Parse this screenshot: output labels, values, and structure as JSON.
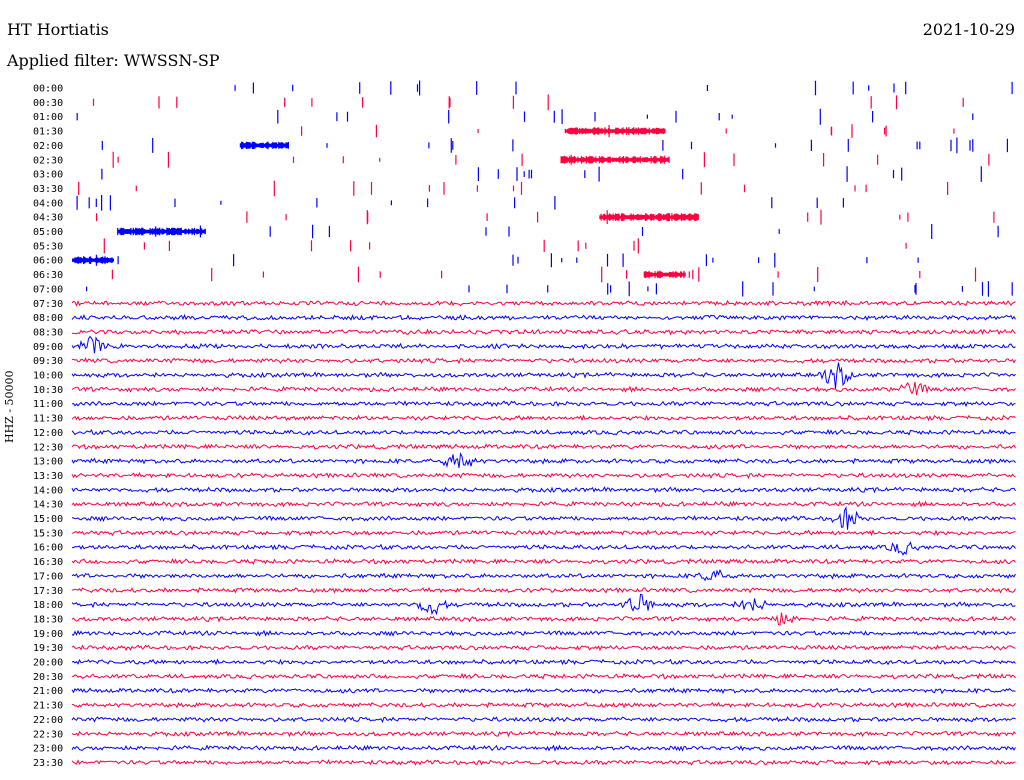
{
  "header": {
    "station": "HT Hortiatis",
    "date": "2021-10-29",
    "filter_label": "Applied filter: WWSSN-SP"
  },
  "chart_data": {
    "type": "line",
    "title": "HT Hortiatis",
    "ylabel": "HHZ - 50000",
    "colors": {
      "trace_a": "#0000ff",
      "trace_b": "#ff0040"
    },
    "row_labels": [
      "00:00",
      "00:30",
      "01:00",
      "01:30",
      "02:00",
      "02:30",
      "03:00",
      "03:30",
      "04:00",
      "04:30",
      "05:00",
      "05:30",
      "06:00",
      "06:30",
      "07:00",
      "07:30",
      "08:00",
      "08:30",
      "09:00",
      "09:30",
      "10:00",
      "10:30",
      "11:00",
      "11:30",
      "12:00",
      "12:30",
      "13:00",
      "13:30",
      "14:00",
      "14:30",
      "15:00",
      "15:30",
      "16:00",
      "16:30",
      "17:00",
      "17:30",
      "18:00",
      "18:30",
      "19:00",
      "19:30",
      "20:00",
      "20:30",
      "21:00",
      "21:30",
      "22:00",
      "22:30",
      "23:00",
      "23:30"
    ],
    "row_colors": [
      "a",
      "b",
      "a",
      "b",
      "a",
      "b",
      "a",
      "b",
      "a",
      "b",
      "a",
      "b",
      "a",
      "b",
      "a",
      "b",
      "a",
      "b",
      "a",
      "b",
      "a",
      "b",
      "a",
      "b",
      "a",
      "b",
      "a",
      "b",
      "a",
      "b",
      "a",
      "b",
      "a",
      "b",
      "a",
      "b",
      "a",
      "b",
      "a",
      "b",
      "a",
      "b",
      "a",
      "b",
      "a",
      "b",
      "a",
      "b"
    ],
    "sparse_rows_until": "07:30",
    "events": [
      {
        "row": "09:00",
        "pos": 0.02,
        "amp": 9
      },
      {
        "row": "10:00",
        "pos": 0.81,
        "amp": 12
      },
      {
        "row": "10:30",
        "pos": 0.89,
        "amp": 7
      },
      {
        "row": "13:00",
        "pos": 0.41,
        "amp": 10
      },
      {
        "row": "15:00",
        "pos": 0.82,
        "amp": 10
      },
      {
        "row": "16:00",
        "pos": 0.88,
        "amp": 6
      },
      {
        "row": "17:00",
        "pos": 0.68,
        "amp": 6
      },
      {
        "row": "18:00",
        "pos": 0.38,
        "amp": 10
      },
      {
        "row": "18:00",
        "pos": 0.6,
        "amp": 10
      },
      {
        "row": "18:00",
        "pos": 0.72,
        "amp": 7
      },
      {
        "row": "18:30",
        "pos": 0.75,
        "amp": 6
      }
    ]
  }
}
